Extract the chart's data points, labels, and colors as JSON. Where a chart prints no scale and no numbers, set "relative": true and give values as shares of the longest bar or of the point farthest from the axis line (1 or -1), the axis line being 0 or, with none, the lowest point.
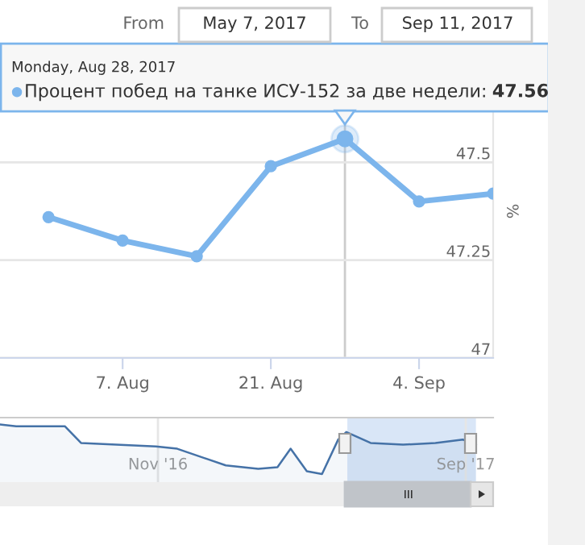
{
  "chart_data": [
    {
      "type": "line",
      "ylabel": "%",
      "x": [
        "2017-07-31",
        "2017-08-07",
        "2017-08-14",
        "2017-08-21",
        "2017-08-28",
        "2017-09-04",
        "2017-09-11"
      ],
      "series": [
        {
          "name": "Процент побед на танке ИСУ-152 за две недели:",
          "color": "#7cb5ec",
          "values": [
            47.36,
            47.3,
            47.26,
            47.49,
            47.56,
            47.4,
            47.42
          ]
        }
      ],
      "xlim": [
        "2017-07-26T10:00",
        "2017-09-11"
      ],
      "ylim": [
        47,
        47.75
      ],
      "xticks": [
        {
          "value": "2017-08-07",
          "label": "7. Aug"
        },
        {
          "value": "2017-08-21",
          "label": "21. Aug"
        },
        {
          "value": "2017-09-04",
          "label": "4. Sep"
        }
      ],
      "yticks": [
        47,
        47.25,
        47.5
      ],
      "grid": "y",
      "marker": "circle",
      "line_style": "solid",
      "ref_lines": [
        {
          "axis": "x",
          "value": "2017-08-28",
          "color": "#cccccc"
        }
      ],
      "annotations": [
        "From",
        "May 7, 2017",
        "To",
        "Sep 11, 2017",
        "Monday, Aug 28, 2017",
        "47.56"
      ]
    },
    {
      "type": "area",
      "relative": true,
      "tick_labels": "x",
      "x": [
        "2016-05-29",
        "2016-06-14",
        "2016-08-01",
        "2016-08-17",
        "2016-10-30",
        "2016-11-20",
        "2017-01-07",
        "2017-02-08",
        "2017-02-27",
        "2017-03-12",
        "2017-03-28",
        "2017-04-12",
        "2017-04-28",
        "2017-05-06",
        "2017-05-30",
        "2017-07-01",
        "2017-08-02",
        "2017-08-29",
        "2017-09-11"
      ],
      "series": [
        {
          "color": "#4572a7",
          "values": [
            1,
            0.97,
            0.97,
            0.68,
            0.62,
            0.58,
            0.29,
            0.23,
            0.26,
            0.58,
            0.19,
            0.14,
            0.74,
            0.87,
            0.68,
            0.65,
            0.68,
            0.74,
            0.64
          ]
        }
      ],
      "xlim": [
        "2016-05-29",
        "2017-09-28"
      ],
      "xticks": [
        {
          "value": "2016-11-01",
          "label": "Nov '16"
        },
        {
          "value": "2017-09-01",
          "label": "Sep '17"
        }
      ],
      "grid": "x",
      "bands": [
        {
          "axis": "x",
          "from": "2017-05-07",
          "to": "2017-09-11",
          "color": "#cfe0f5"
        }
      ]
    }
  ]
}
